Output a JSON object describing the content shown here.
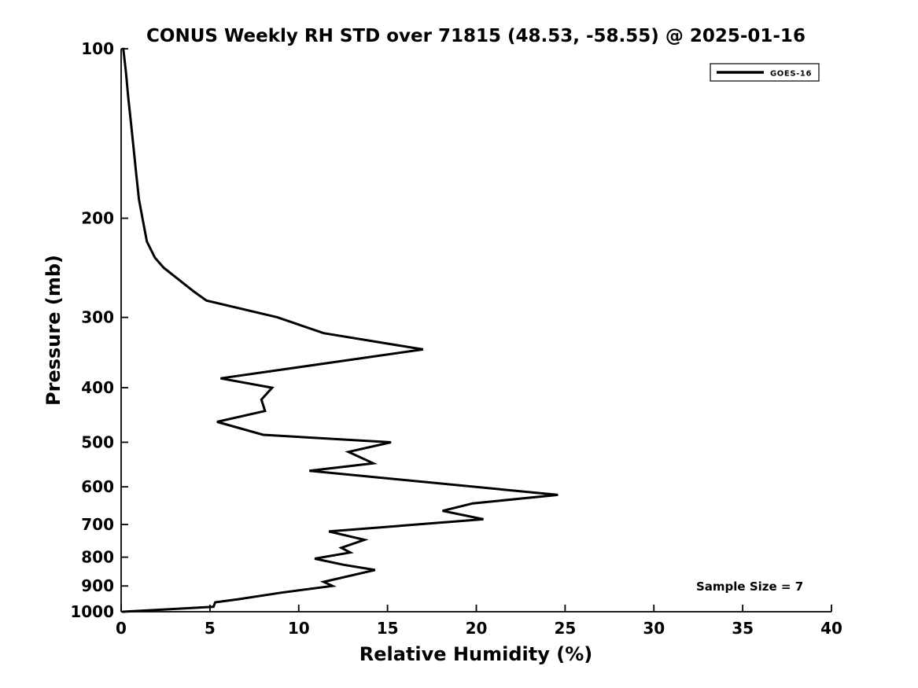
{
  "page": {
    "background": "#ffffff",
    "foreground": "#000000"
  },
  "chart_data": {
    "type": "line",
    "title": "CONUS Weekly RH STD over 71815 (48.53, -58.55) @ 2025-01-16",
    "xlabel": "Relative Humidity (%)",
    "ylabel": "Pressure (mb)",
    "x_scale": "linear",
    "y_scale": "log",
    "y_inverted": true,
    "xlim": [
      0,
      40
    ],
    "ylim": [
      100,
      1000
    ],
    "x_ticks": [
      0,
      5,
      10,
      15,
      20,
      25,
      30,
      35,
      40
    ],
    "y_ticks": [
      100,
      200,
      300,
      400,
      500,
      600,
      700,
      800,
      900,
      1000
    ],
    "grid": false,
    "box": false,
    "axis_color": "#000000",
    "legend": {
      "position": "upper-right",
      "entries": [
        {
          "label": "GOES-16",
          "color": "#000000",
          "line_style": "solid"
        }
      ]
    },
    "annotation": {
      "text": "Sample Size = 7"
    },
    "series": [
      {
        "name": "GOES-16",
        "color": "#000000",
        "line_width": 3,
        "points_rh_pressure": [
          [
            0.12,
            100
          ],
          [
            0.27,
            110
          ],
          [
            0.4,
            122
          ],
          [
            0.55,
            135
          ],
          [
            0.7,
            150
          ],
          [
            0.85,
            167
          ],
          [
            1.0,
            185
          ],
          [
            1.2,
            200
          ],
          [
            1.45,
            220
          ],
          [
            1.9,
            235
          ],
          [
            2.4,
            245
          ],
          [
            3.1,
            255
          ],
          [
            4.1,
            270
          ],
          [
            4.8,
            280
          ],
          [
            8.8,
            300
          ],
          [
            11.4,
            320
          ],
          [
            17.0,
            342
          ],
          [
            5.6,
            385
          ],
          [
            8.5,
            400
          ],
          [
            7.9,
            420
          ],
          [
            8.1,
            440
          ],
          [
            5.4,
            460
          ],
          [
            8.0,
            485
          ],
          [
            15.2,
            500
          ],
          [
            12.8,
            520
          ],
          [
            14.2,
            545
          ],
          [
            10.6,
            562
          ],
          [
            24.6,
            620
          ],
          [
            19.8,
            642
          ],
          [
            18.1,
            662
          ],
          [
            20.4,
            685
          ],
          [
            11.7,
            720
          ],
          [
            13.7,
            745
          ],
          [
            12.4,
            770
          ],
          [
            12.9,
            785
          ],
          [
            10.9,
            805
          ],
          [
            12.5,
            825
          ],
          [
            14.3,
            843
          ],
          [
            11.4,
            885
          ],
          [
            11.9,
            900
          ],
          [
            9.0,
            925
          ],
          [
            6.6,
            950
          ],
          [
            5.3,
            962
          ],
          [
            5.2,
            980
          ],
          [
            0.1,
            1000
          ]
        ]
      }
    ]
  }
}
